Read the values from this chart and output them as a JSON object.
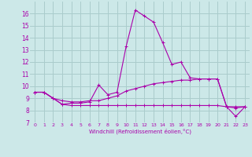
{
  "xlabel": "Windchill (Refroidissement éolien,°C)",
  "ylabel": "",
  "bg_color": "#cce8e8",
  "grid_color": "#aacccc",
  "line_color": "#aa00aa",
  "xlim": [
    -0.5,
    23.5
  ],
  "ylim": [
    7,
    17
  ],
  "yticks": [
    7,
    8,
    9,
    10,
    11,
    12,
    13,
    14,
    15,
    16
  ],
  "xticks": [
    0,
    1,
    2,
    3,
    4,
    5,
    6,
    7,
    8,
    9,
    10,
    11,
    12,
    13,
    14,
    15,
    16,
    17,
    18,
    19,
    20,
    21,
    22,
    23
  ],
  "line1_x": [
    0,
    1,
    2,
    3,
    4,
    5,
    6,
    7,
    8,
    9,
    10,
    11,
    12,
    13,
    14,
    15,
    16,
    17,
    18,
    19,
    20,
    21,
    22,
    23
  ],
  "line1_y": [
    9.5,
    9.5,
    9.0,
    8.5,
    8.6,
    8.6,
    8.7,
    10.1,
    9.3,
    9.5,
    13.3,
    16.3,
    15.8,
    15.3,
    13.6,
    11.8,
    12.0,
    10.7,
    10.6,
    10.6,
    10.6,
    8.3,
    7.5,
    8.3
  ],
  "line2_x": [
    0,
    1,
    2,
    3,
    4,
    5,
    6,
    7,
    8,
    9,
    10,
    11,
    12,
    13,
    14,
    15,
    16,
    17,
    18,
    19,
    20,
    21,
    22,
    23
  ],
  "line2_y": [
    9.5,
    9.5,
    9.0,
    8.8,
    8.7,
    8.7,
    8.8,
    8.8,
    9.0,
    9.2,
    9.6,
    9.8,
    10.0,
    10.2,
    10.3,
    10.4,
    10.5,
    10.5,
    10.6,
    10.6,
    10.6,
    8.3,
    8.2,
    8.3
  ],
  "line3_x": [
    0,
    1,
    2,
    3,
    4,
    5,
    6,
    7,
    8,
    9,
    10,
    11,
    12,
    13,
    14,
    15,
    16,
    17,
    18,
    19,
    20,
    21,
    22,
    23
  ],
  "line3_y": [
    9.5,
    9.5,
    9.0,
    8.5,
    8.4,
    8.4,
    8.4,
    8.4,
    8.4,
    8.4,
    8.4,
    8.4,
    8.4,
    8.4,
    8.4,
    8.4,
    8.4,
    8.4,
    8.4,
    8.4,
    8.4,
    8.3,
    8.3,
    8.3
  ]
}
